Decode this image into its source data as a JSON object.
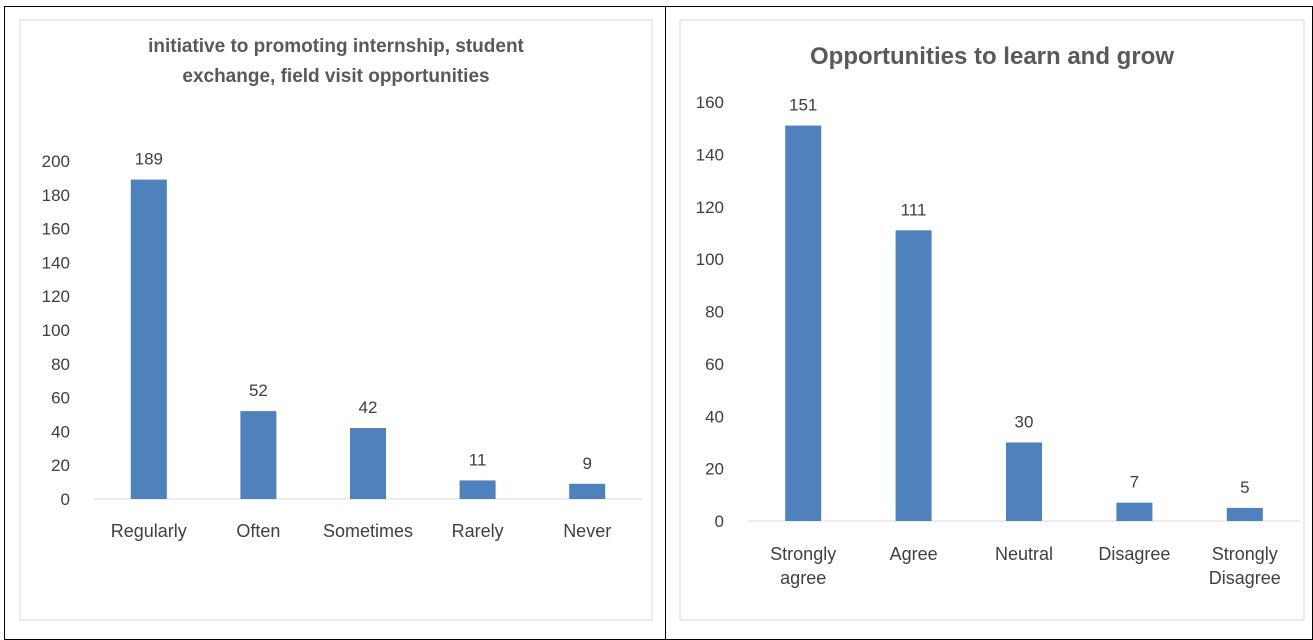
{
  "chart_data": [
    {
      "type": "bar",
      "title": "initiative to promoting internship, student exchange, field visit opportunities",
      "title_lines": [
        "initiative to promoting internship, student",
        "exchange, field visit opportunities"
      ],
      "categories": [
        "Regularly",
        "Often",
        "Sometimes",
        "Rarely",
        "Never"
      ],
      "category_lines": [
        [
          "Regularly"
        ],
        [
          "Often"
        ],
        [
          "Sometimes"
        ],
        [
          "Rarely"
        ],
        [
          "Never"
        ]
      ],
      "values": [
        189,
        52,
        42,
        11,
        9
      ],
      "ylim": [
        0,
        200
      ],
      "yticks": [
        0,
        20,
        40,
        60,
        80,
        100,
        120,
        140,
        160,
        180,
        200
      ],
      "grid": false,
      "bar_color": "#4f81bd",
      "xlabel": "",
      "ylabel": ""
    },
    {
      "type": "bar",
      "title": "Opportunities to learn and grow",
      "title_lines": [
        "Opportunities to learn and grow"
      ],
      "categories": [
        "Strongly agree",
        "Agree",
        "Neutral",
        "Disagree",
        "Strongly Disagree"
      ],
      "category_lines": [
        [
          "Strongly",
          "agree"
        ],
        [
          "Agree"
        ],
        [
          "Neutral"
        ],
        [
          "Disagree"
        ],
        [
          "Strongly",
          "Disagree"
        ]
      ],
      "values": [
        151,
        111,
        30,
        7,
        5
      ],
      "ylim": [
        0,
        160
      ],
      "yticks": [
        0,
        20,
        40,
        60,
        80,
        100,
        120,
        140,
        160
      ],
      "grid": false,
      "bar_color": "#4f81bd",
      "xlabel": "",
      "ylabel": ""
    }
  ]
}
